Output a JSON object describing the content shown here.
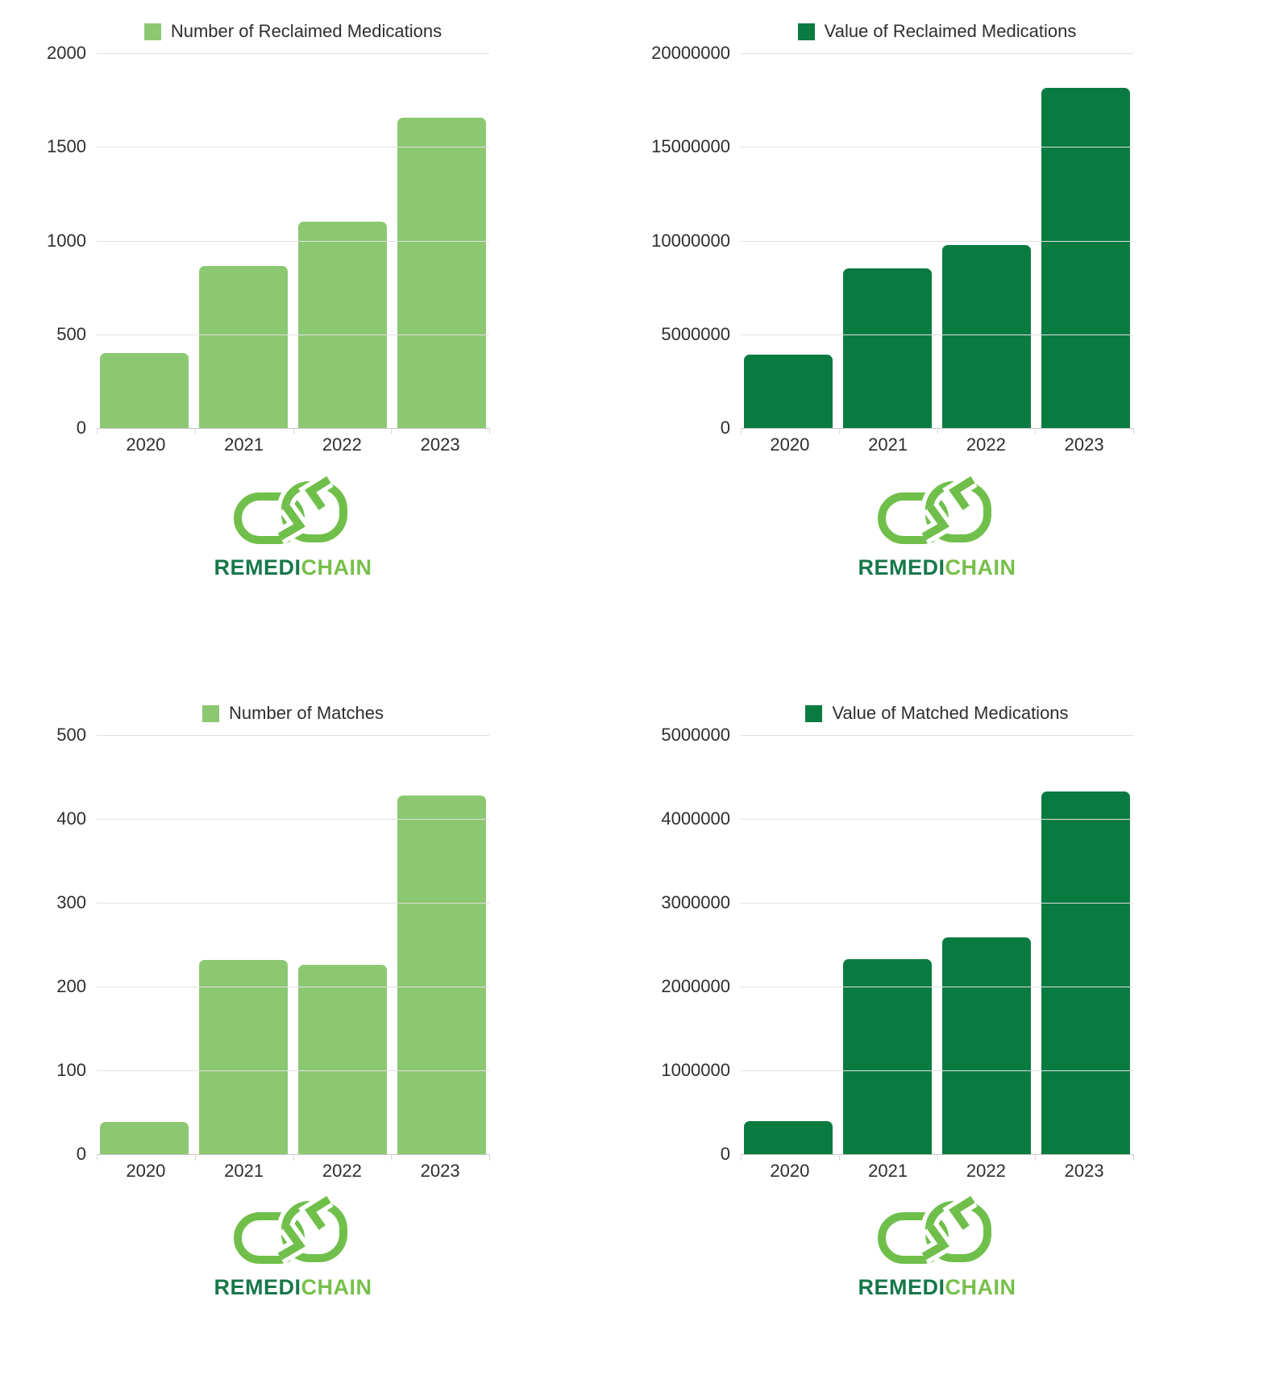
{
  "page": {
    "background": "#ffffff"
  },
  "brand": {
    "logo_icon_name": "remedichain-cycle-icon",
    "logo_text_primary": "REMEDI",
    "logo_text_secondary": "CHAIN",
    "logo_primary_color": "#17774a",
    "logo_secondary_color": "#76bf4b",
    "logo_icon_color": "#70bf4b"
  },
  "colors": {
    "light_green_bar": "#8cc872",
    "dark_green_bar": "#0a7b40",
    "gridline": "#e0e0e0",
    "baseline": "#c6c6c6",
    "axis_text": "#2e2e2e"
  },
  "chart_data": [
    {
      "type": "bar",
      "title": "Number of Reclaimed Medications",
      "legend": "Number of Reclaimed Medications",
      "legend_position": "top",
      "grid": true,
      "color": "#8cc872",
      "categories": [
        "2020",
        "2021",
        "2022",
        "2023"
      ],
      "values": [
        400,
        865,
        1100,
        1655
      ],
      "xlabel": "",
      "ylabel": "",
      "ylim": [
        0,
        2000
      ],
      "yticks": [
        0,
        500,
        1000,
        1500,
        2000
      ]
    },
    {
      "type": "bar",
      "title": "Value of Reclaimed Medications",
      "legend": "Value of Reclaimed Medications",
      "legend_position": "top",
      "grid": true,
      "color": "#0a7b40",
      "categories": [
        "2020",
        "2021",
        "2022",
        "2023"
      ],
      "values": [
        3900000,
        8500000,
        9750000,
        18150000
      ],
      "xlabel": "",
      "ylabel": "",
      "ylim": [
        0,
        20000000
      ],
      "yticks": [
        0,
        5000000,
        10000000,
        15000000,
        20000000
      ]
    },
    {
      "type": "bar",
      "title": "Number of Matches",
      "legend": "Number of Matches",
      "legend_position": "top",
      "grid": true,
      "color": "#8cc872",
      "categories": [
        "2020",
        "2021",
        "2022",
        "2023"
      ],
      "values": [
        38,
        232,
        226,
        428
      ],
      "xlabel": "",
      "ylabel": "",
      "ylim": [
        0,
        500
      ],
      "yticks": [
        0,
        100,
        200,
        300,
        400,
        500
      ]
    },
    {
      "type": "bar",
      "title": "Value of Matched Medications",
      "legend": "Value of Matched Medications",
      "legend_position": "top",
      "grid": true,
      "color": "#0a7b40",
      "categories": [
        "2020",
        "2021",
        "2022",
        "2023"
      ],
      "values": [
        390000,
        2330000,
        2590000,
        4330000
      ],
      "xlabel": "",
      "ylabel": "",
      "ylim": [
        0,
        5000000
      ],
      "yticks": [
        0,
        1000000,
        2000000,
        3000000,
        4000000,
        5000000
      ]
    }
  ]
}
